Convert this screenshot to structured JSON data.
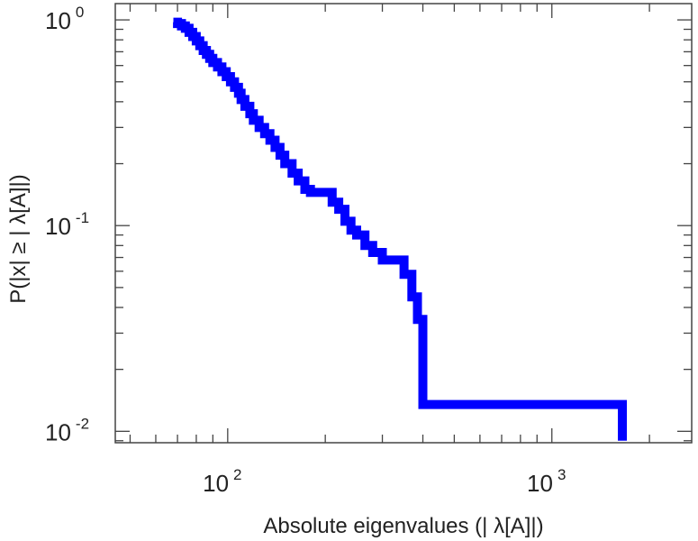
{
  "chart_data": {
    "type": "line",
    "title": "",
    "xlabel": "Absolute eigenvalues (|     λ[A]|)",
    "ylabel": "P(|x|  ≥ | λ[A]|)",
    "x_scale": "log",
    "y_scale": "log",
    "xlim": [
      45,
      2700
    ],
    "ylim": [
      0.0088,
      1.2
    ],
    "grid": false,
    "x_ticks": [
      {
        "base": "10",
        "exp": "2",
        "value": 100
      },
      {
        "base": "10",
        "exp": "3",
        "value": 1000
      }
    ],
    "y_ticks": [
      {
        "base": "10",
        "exp": "0",
        "value": 1
      },
      {
        "base": "10",
        "exp": "-1",
        "value": 0.1
      },
      {
        "base": "10",
        "exp": "-2",
        "value": 0.01
      }
    ],
    "series": [
      {
        "color": "#0000ff",
        "x": [
          68,
          70,
          72,
          74,
          76,
          78,
          80,
          82,
          84,
          86,
          88,
          90,
          93,
          96,
          99,
          102,
          105,
          108,
          110,
          113,
          117,
          120,
          125,
          130,
          135,
          140,
          145,
          150,
          158,
          165,
          173,
          180,
          190,
          200,
          210,
          220,
          230,
          240,
          250,
          265,
          280,
          300,
          320,
          335,
          350,
          370,
          385,
          400,
          1650,
          1650
        ],
        "y": [
          0.975,
          0.96,
          0.935,
          0.91,
          0.87,
          0.83,
          0.79,
          0.75,
          0.71,
          0.68,
          0.65,
          0.62,
          0.59,
          0.56,
          0.53,
          0.5,
          0.47,
          0.44,
          0.41,
          0.38,
          0.35,
          0.325,
          0.3,
          0.28,
          0.26,
          0.24,
          0.22,
          0.2,
          0.18,
          0.165,
          0.15,
          0.145,
          0.145,
          0.145,
          0.13,
          0.12,
          0.105,
          0.095,
          0.09,
          0.08,
          0.074,
          0.068,
          0.068,
          0.068,
          0.058,
          0.045,
          0.035,
          0.0135,
          0.0135,
          0.009
        ]
      }
    ]
  }
}
